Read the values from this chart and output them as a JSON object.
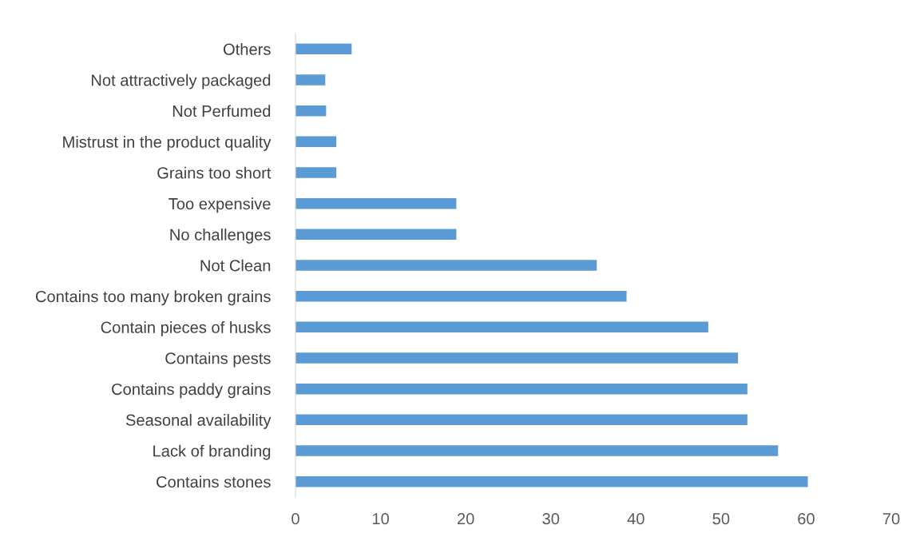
{
  "chart_data": {
    "type": "bar",
    "orientation": "horizontal",
    "categories": [
      "Others",
      "Not attractively packaged",
      "Not Perfumed",
      "Mistrust in the product quality",
      "Grains too short",
      "Too expensive",
      "No challenges",
      "Not Clean",
      "Contains too many broken grains",
      "Contain pieces of husks",
      "Contains pests",
      "Contains paddy grains",
      "Seasonal availability",
      "Lack of branding",
      "Contains stones"
    ],
    "values": [
      6.6,
      3.5,
      3.6,
      4.8,
      4.8,
      18.9,
      18.9,
      35.4,
      38.9,
      48.5,
      52.0,
      53.1,
      53.1,
      56.7,
      60.2
    ],
    "color": "#5b9bd5",
    "xlim": [
      0,
      70
    ],
    "xticks": [
      0,
      10,
      20,
      30,
      40,
      50,
      60,
      70
    ],
    "grid": false,
    "legend": false
  }
}
